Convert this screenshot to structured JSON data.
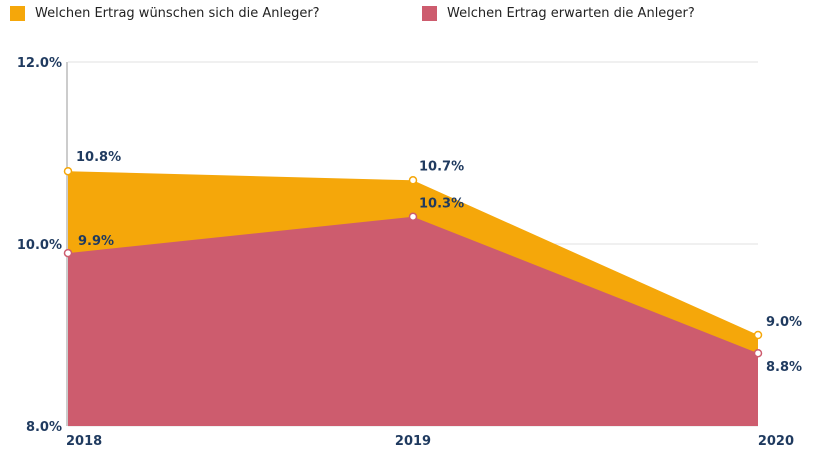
{
  "colors": {
    "wish": "#f5a70a",
    "expect": "#cd5c6e",
    "grid": "#e2e2e2",
    "axis": "#9a9a9a",
    "text": "#1f3a5f"
  },
  "chart_data": {
    "type": "area",
    "x": [
      "2018",
      "2019",
      "2020"
    ],
    "ylim": [
      8.0,
      12.0
    ],
    "yticks": [
      "8.0%",
      "10.0%",
      "12.0%"
    ],
    "ytick_values": [
      8.0,
      10.0,
      12.0
    ],
    "grid": true,
    "legend": "top",
    "series": [
      {
        "name": "Welchen Ertrag wünschen sich die Anleger?",
        "values": [
          10.8,
          10.7,
          9.0
        ],
        "labels": [
          "10.8%",
          "10.7%",
          "9.0%"
        ],
        "color": "#f5a70a"
      },
      {
        "name": "Welchen Ertrag erwarten die Anleger?",
        "values": [
          9.9,
          10.3,
          8.8
        ],
        "labels": [
          "9.9%",
          "10.3%",
          "8.8%"
        ],
        "color": "#cd5c6e"
      }
    ]
  }
}
